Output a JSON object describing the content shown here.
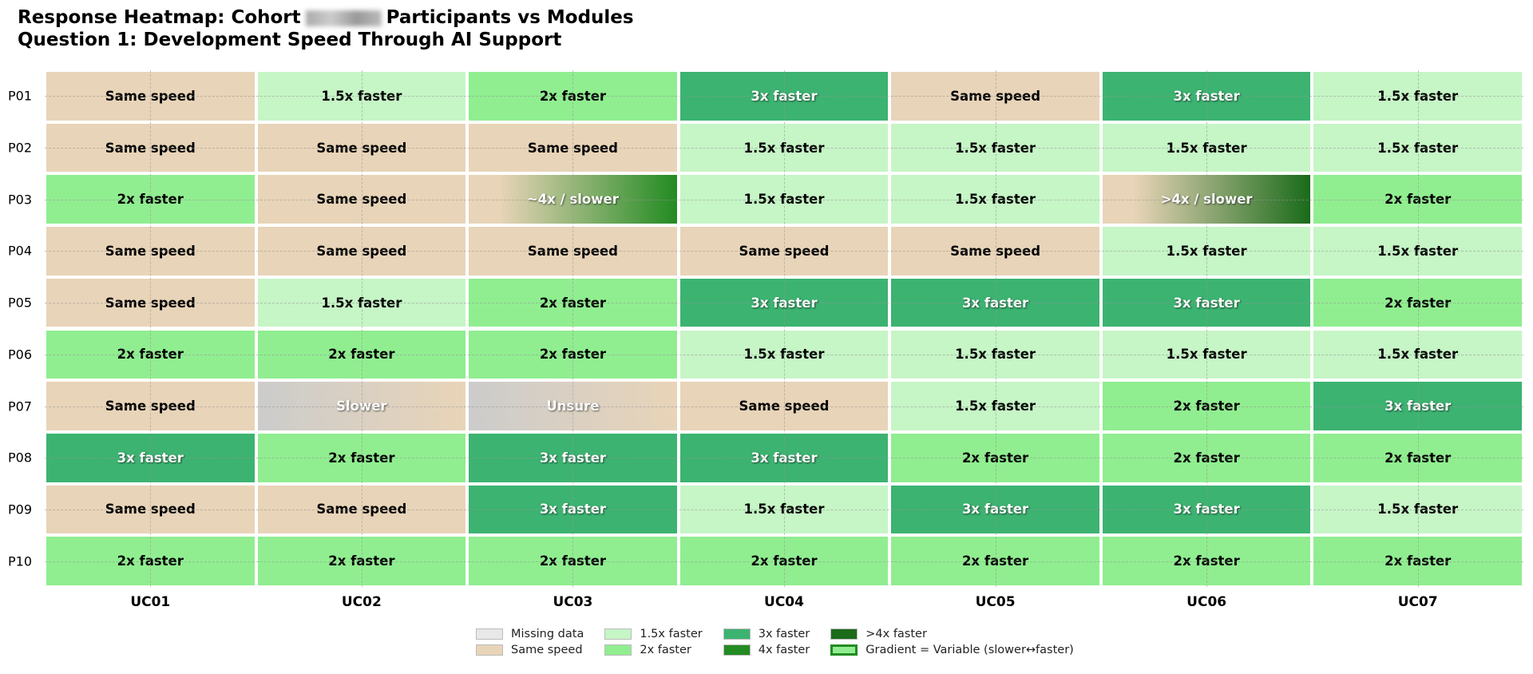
{
  "chart_data": {
    "type": "heatmap",
    "title_line1_prefix": "Response Heatmap: Cohort",
    "title_line1_suffix": "Participants vs Modules",
    "title_line2": "Question 1: Development Speed Through AI Support",
    "rows": [
      "P01",
      "P02",
      "P03",
      "P04",
      "P05",
      "P06",
      "P07",
      "P08",
      "P09",
      "P10"
    ],
    "columns": [
      "UC01",
      "UC02",
      "UC03",
      "UC04",
      "UC05",
      "UC06",
      "UC07"
    ],
    "grid": true,
    "values": [
      [
        "Same speed",
        "1.5x faster",
        "2x faster",
        "3x faster",
        "Same speed",
        "3x faster",
        "1.5x faster"
      ],
      [
        "Same speed",
        "Same speed",
        "Same speed",
        "1.5x faster",
        "1.5x faster",
        "1.5x faster",
        "1.5x faster"
      ],
      [
        "2x faster",
        "Same speed",
        "~4x / slower",
        "1.5x faster",
        "1.5x faster",
        ">4x / slower",
        "2x faster"
      ],
      [
        "Same speed",
        "Same speed",
        "Same speed",
        "Same speed",
        "Same speed",
        "1.5x faster",
        "1.5x faster"
      ],
      [
        "Same speed",
        "1.5x faster",
        "2x faster",
        "3x faster",
        "3x faster",
        "3x faster",
        "2x faster"
      ],
      [
        "2x faster",
        "2x faster",
        "2x faster",
        "1.5x faster",
        "1.5x faster",
        "1.5x faster",
        "1.5x faster"
      ],
      [
        "Same speed",
        "Slower",
        "Unsure",
        "Same speed",
        "1.5x faster",
        "2x faster",
        "3x faster"
      ],
      [
        "3x faster",
        "2x faster",
        "3x faster",
        "3x faster",
        "2x faster",
        "2x faster",
        "2x faster"
      ],
      [
        "Same speed",
        "Same speed",
        "3x faster",
        "1.5x faster",
        "3x faster",
        "3x faster",
        "1.5x faster"
      ],
      [
        "2x faster",
        "2x faster",
        "2x faster",
        "2x faster",
        "2x faster",
        "2x faster",
        "2x faster"
      ]
    ],
    "colors": {
      "Missing data": "#e8e8e8",
      "Same speed": "#e8d4b8",
      "1.5x faster": "#c6f5c6",
      "2x faster": "#90ee90",
      "3x faster": "#3cb371",
      "4x faster": "#228b22",
      ">4x faster": "#1a6b1a",
      "Slower": "#cccccc"
    },
    "gradients": {
      "~4x / slower": [
        "#e8d4b8",
        "#228b22"
      ],
      ">4x / slower": [
        "#e8d4b8",
        "#1a6b1a"
      ],
      "Slower": [
        "#cccccc",
        "#e8d4b8"
      ],
      "Unsure": [
        "#cccccc",
        "#e8d4b8"
      ]
    },
    "legend_position": "bottom-center",
    "legend": [
      {
        "label": "Missing data",
        "color": "#e8e8e8"
      },
      {
        "label": "1.5x faster",
        "color": "#c6f5c6"
      },
      {
        "label": "3x faster",
        "color": "#3cb371"
      },
      {
        "label": ">4x faster",
        "color": "#1a6b1a"
      },
      {
        "label": "Same speed",
        "color": "#e8d4b8"
      },
      {
        "label": "2x faster",
        "color": "#90ee90"
      },
      {
        "label": "4x faster",
        "color": "#228b22"
      },
      {
        "label": "Gradient = Variable (slower↔faster)",
        "color": "#90ee90",
        "border": "#228b22"
      }
    ]
  }
}
